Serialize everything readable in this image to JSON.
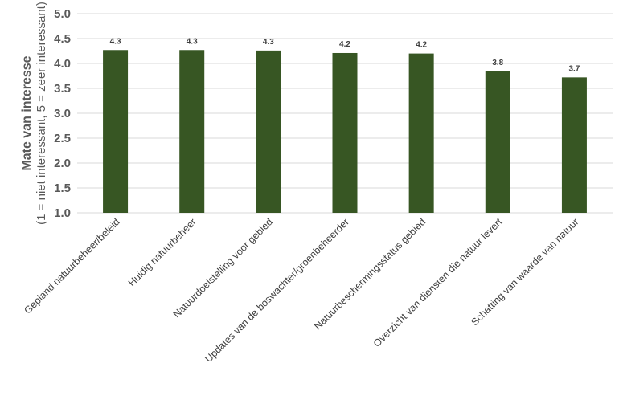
{
  "chart_data": {
    "type": "bar",
    "categories": [
      "Gepland natuurbeheer/beleid",
      "Huidig natuurbeheer",
      "Natuurdoelstelling voor gebied",
      "Updates van de boswachter/groenbeheerder",
      "Natuurbeschermingsstatus gebied",
      "Overzicht van diensten die natuur levert",
      "Schatting van waarde van natuur"
    ],
    "values": [
      4.27,
      4.27,
      4.26,
      4.21,
      4.2,
      3.84,
      3.72
    ],
    "data_labels": [
      "4.3",
      "4.3",
      "4.3",
      "4.2",
      "4.2",
      "3.8",
      "3.7"
    ],
    "ylabel": "Mate van interesse",
    "ylabel_sub": "(1 = niet interessant, 5 = zeer interessant)",
    "ylim": [
      1.0,
      5.0
    ],
    "yticks": [
      "1.0",
      "1.5",
      "2.0",
      "2.5",
      "3.0",
      "3.5",
      "4.0",
      "4.5",
      "5.0"
    ],
    "grid": true,
    "bar_color": "#375623",
    "grid_color": "#d9d9d9"
  }
}
